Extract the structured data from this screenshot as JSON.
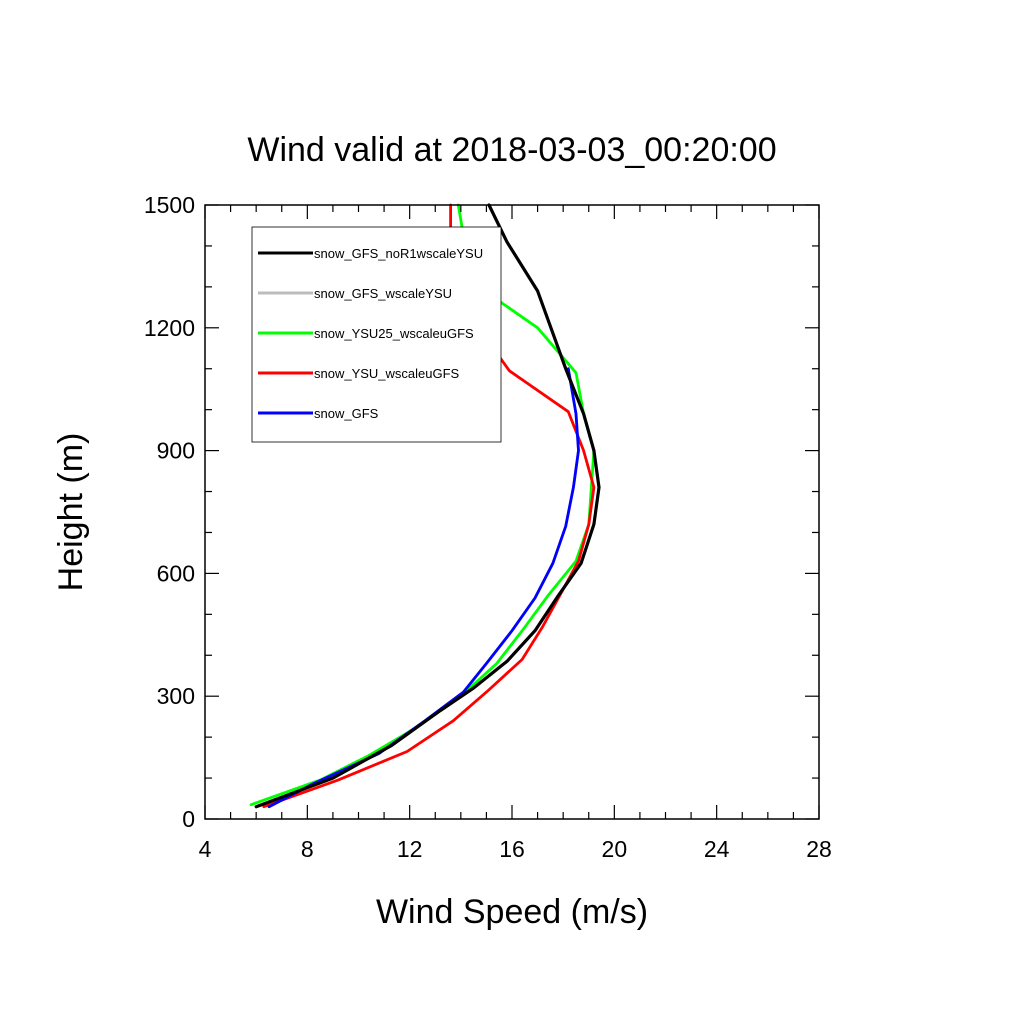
{
  "chart_data": {
    "type": "line",
    "title": "Wind valid at 2018-03-03_00:20:00",
    "xlabel": "Wind Speed (m/s)",
    "ylabel": "Height (m)",
    "xlim": [
      4,
      28
    ],
    "ylim": [
      0,
      1500
    ],
    "xticks": [
      4,
      8,
      12,
      16,
      20,
      24,
      28
    ],
    "yticks": [
      0,
      300,
      600,
      900,
      1200,
      1500
    ],
    "x_minor_step": 1,
    "y_minor_step": 100,
    "grid": false,
    "legend_placement": "top-left",
    "series": [
      {
        "name": "snow_GFS_noR1wscaleYSU",
        "color": "#000000",
        "points": [
          [
            6.0,
            30
          ],
          [
            9.0,
            100
          ],
          [
            11.3,
            180
          ],
          [
            13.2,
            265
          ],
          [
            14.5,
            320
          ],
          [
            15.8,
            385
          ],
          [
            16.9,
            460
          ],
          [
            17.8,
            545
          ],
          [
            18.7,
            625
          ],
          [
            19.2,
            720
          ],
          [
            19.4,
            810
          ],
          [
            19.2,
            900
          ],
          [
            18.8,
            990
          ],
          [
            18.1,
            1100
          ],
          [
            17.0,
            1290
          ],
          [
            15.8,
            1410
          ],
          [
            15.1,
            1500
          ]
        ]
      },
      {
        "name": "snow_GFS_wscaleYSU",
        "color": "#bcbcbc",
        "points": [
          [
            6.5,
            30
          ],
          [
            8.2,
            85
          ],
          [
            10.8,
            160
          ],
          [
            12.6,
            240
          ],
          [
            14.1,
            310
          ],
          [
            15.0,
            380
          ],
          [
            16.0,
            460
          ],
          [
            16.9,
            540
          ],
          [
            17.6,
            625
          ],
          [
            18.1,
            715
          ],
          [
            18.4,
            810
          ],
          [
            18.6,
            900
          ],
          [
            18.5,
            990
          ],
          [
            18.2,
            1100
          ]
        ]
      },
      {
        "name": "snow_YSU25_wscaleuGFS",
        "color": "#00ff00",
        "points": [
          [
            5.8,
            35
          ],
          [
            8.5,
            95
          ],
          [
            10.4,
            155
          ],
          [
            12.3,
            225
          ],
          [
            14.0,
            300
          ],
          [
            15.4,
            380
          ],
          [
            16.4,
            460
          ],
          [
            17.4,
            545
          ],
          [
            18.5,
            630
          ],
          [
            19.0,
            720
          ],
          [
            19.2,
            900
          ],
          [
            18.8,
            990
          ],
          [
            18.5,
            1090
          ],
          [
            17.0,
            1200
          ],
          [
            14.7,
            1300
          ],
          [
            14.2,
            1390
          ],
          [
            13.9,
            1500
          ]
        ]
      },
      {
        "name": "snow_YSU_wscaleuGFS",
        "color": "#ff0000",
        "points": [
          [
            6.3,
            30
          ],
          [
            9.2,
            95
          ],
          [
            11.9,
            165
          ],
          [
            13.7,
            240
          ],
          [
            15.0,
            310
          ],
          [
            16.4,
            390
          ],
          [
            17.2,
            470
          ],
          [
            17.9,
            550
          ],
          [
            18.6,
            630
          ],
          [
            19.0,
            720
          ],
          [
            19.2,
            810
          ],
          [
            18.8,
            900
          ],
          [
            18.2,
            995
          ],
          [
            15.9,
            1095
          ],
          [
            14.7,
            1200
          ],
          [
            13.8,
            1300
          ],
          [
            13.6,
            1400
          ],
          [
            13.6,
            1500
          ]
        ]
      },
      {
        "name": "snow_GFS",
        "color": "#0000ff",
        "points": [
          [
            6.5,
            30
          ],
          [
            8.2,
            85
          ],
          [
            10.8,
            160
          ],
          [
            12.6,
            240
          ],
          [
            14.1,
            310
          ],
          [
            15.0,
            380
          ],
          [
            16.0,
            460
          ],
          [
            16.9,
            540
          ],
          [
            17.6,
            625
          ],
          [
            18.1,
            715
          ],
          [
            18.4,
            810
          ],
          [
            18.6,
            900
          ],
          [
            18.5,
            990
          ],
          [
            18.2,
            1100
          ]
        ]
      }
    ]
  }
}
